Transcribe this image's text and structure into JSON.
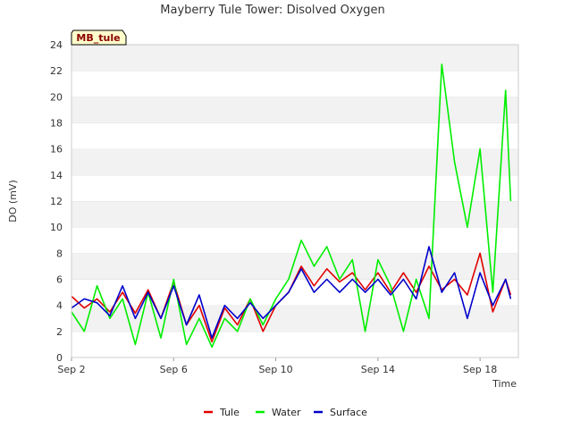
{
  "chart_data": {
    "type": "line",
    "title": "Mayberry Tule Tower: Disolved Oxygen",
    "xlabel": "Time",
    "ylabel": "DO (mV)",
    "station_tag": "MB_tule",
    "xlim": [
      2,
      19.5
    ],
    "ylim": [
      0,
      24
    ],
    "yticks": [
      0,
      2,
      4,
      6,
      8,
      10,
      12,
      14,
      16,
      18,
      20,
      22,
      24
    ],
    "xticks": [
      {
        "value": 2,
        "label": "Sep 2"
      },
      {
        "value": 6,
        "label": "Sep 6"
      },
      {
        "value": 10,
        "label": "Sep 10"
      },
      {
        "value": 14,
        "label": "Sep 14"
      },
      {
        "value": 18,
        "label": "Sep 18"
      }
    ],
    "grid": "horizontal bands",
    "legend_position": "bottom",
    "x": [
      2.0,
      2.5,
      3.0,
      3.5,
      4.0,
      4.5,
      5.0,
      5.5,
      6.0,
      6.5,
      7.0,
      7.5,
      8.0,
      8.5,
      9.0,
      9.5,
      10.0,
      10.5,
      11.0,
      11.5,
      12.0,
      12.5,
      13.0,
      13.5,
      14.0,
      14.5,
      15.0,
      15.5,
      16.0,
      16.5,
      17.0,
      17.5,
      18.0,
      18.5,
      19.0,
      19.2
    ],
    "series": [
      {
        "name": "Tule",
        "color": "#e00000",
        "values": [
          4.7,
          3.8,
          4.5,
          3.5,
          5.0,
          3.4,
          5.2,
          3.0,
          5.8,
          2.5,
          4.0,
          1.2,
          3.8,
          2.5,
          4.5,
          2.0,
          4.0,
          5.0,
          7.0,
          5.5,
          6.8,
          5.8,
          6.5,
          5.2,
          6.5,
          5.0,
          6.5,
          5.0,
          7.0,
          5.2,
          6.0,
          4.8,
          8.0,
          3.5,
          6.0,
          4.8
        ]
      },
      {
        "name": "Water",
        "color": "#00ee00",
        "values": [
          3.5,
          2.0,
          5.5,
          3.0,
          4.5,
          1.0,
          5.0,
          1.5,
          6.0,
          1.0,
          3.0,
          0.8,
          3.0,
          2.0,
          4.5,
          2.5,
          4.5,
          6.0,
          9.0,
          7.0,
          8.5,
          6.0,
          7.5,
          2.0,
          7.5,
          5.5,
          2.0,
          6.0,
          3.0,
          22.5,
          15.0,
          10.0,
          16.0,
          5.0,
          20.5,
          12.0
        ]
      },
      {
        "name": "Surface",
        "color": "#0000cc",
        "values": [
          3.8,
          4.5,
          4.2,
          3.2,
          5.5,
          3.0,
          5.0,
          3.0,
          5.5,
          2.5,
          4.8,
          1.5,
          4.0,
          3.0,
          4.2,
          3.0,
          4.0,
          5.0,
          6.8,
          5.0,
          6.0,
          5.0,
          6.0,
          5.0,
          6.0,
          4.8,
          6.0,
          4.5,
          8.5,
          5.0,
          6.5,
          3.0,
          6.5,
          4.0,
          6.0,
          4.5
        ]
      }
    ]
  }
}
